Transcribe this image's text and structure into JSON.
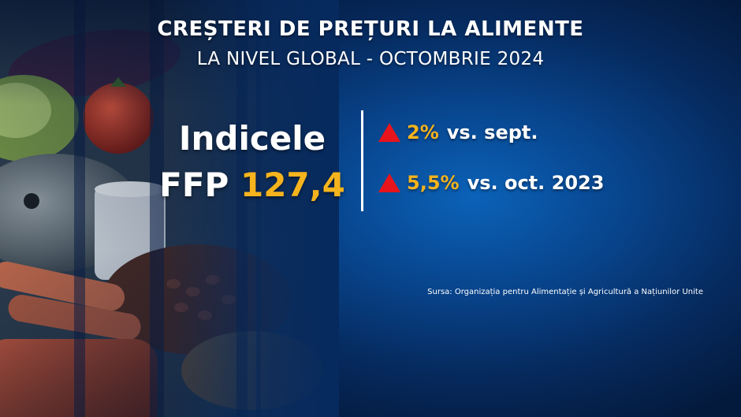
{
  "title": "CREȘTERI DE PREȚURI LA ALIMENTE",
  "subtitle": "LA NIVEL GLOBAL - OCTOMBRIE 2024",
  "index": {
    "label": "Indicele",
    "name": "FFP",
    "value": "127,4"
  },
  "stats": [
    {
      "icon": "up-triangle-icon",
      "percent": "2%",
      "text": "vs. sept."
    },
    {
      "icon": "up-triangle-icon",
      "percent": "5,5%",
      "text": "vs. oct. 2023"
    }
  ],
  "source": "Sursa: Organizația pentru Alimentație și Agricultură a Națiunilor Unite",
  "colors": {
    "accent": "#f5b31d",
    "arrow": "#e8141c",
    "background": "#0b62b8",
    "text": "#ffffff"
  }
}
